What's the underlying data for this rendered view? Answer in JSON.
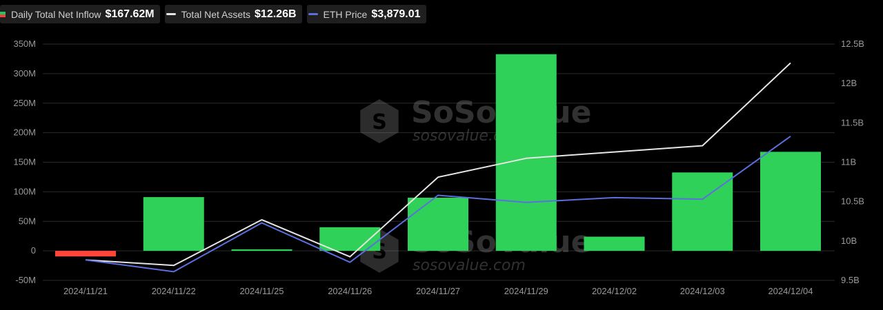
{
  "legend": {
    "inflow": {
      "label": "Daily Total Net Inflow",
      "value": "$167.62M"
    },
    "assets": {
      "label": "Total Net Assets",
      "value": "$12.26B"
    },
    "eth": {
      "label": "ETH Price",
      "value": "$3,879.01"
    }
  },
  "watermark": {
    "brand": "SoSoValue",
    "url": "sosovalue.com"
  },
  "colors": {
    "positive": "#30d158",
    "negative": "#ff453a",
    "assets_line": "#e6e6e6",
    "eth_line": "#5b6fe0",
    "grid": "#2a2a2a"
  },
  "chart_data": {
    "type": "bar",
    "categories": [
      "2024/11/21",
      "2024/11/22",
      "2024/11/25",
      "2024/11/26",
      "2024/11/27",
      "2024/11/29",
      "2024/12/02",
      "2024/12/03",
      "2024/12/04"
    ],
    "series": [
      {
        "name": "Daily Total Net Inflow",
        "type": "bar",
        "axis": "left",
        "values": [
          -9.5,
          91,
          2.5,
          40,
          90,
          332.9,
          24,
          132.7,
          167.62
        ]
      },
      {
        "name": "Total Net Assets",
        "type": "line",
        "axis": "right",
        "values": [
          9.76,
          9.69,
          10.27,
          9.8,
          10.81,
          11.05,
          11.13,
          11.21,
          12.26
        ]
      },
      {
        "name": "ETH Price",
        "type": "line",
        "axis": "right",
        "values": [
          9.76,
          9.61,
          10.23,
          9.73,
          10.58,
          10.49,
          10.55,
          10.53,
          11.33
        ]
      }
    ],
    "yleft": {
      "ticks": [
        "350M",
        "300M",
        "250M",
        "200M",
        "150M",
        "100M",
        "50M",
        "0",
        "-50M"
      ],
      "range": [
        -50,
        350
      ]
    },
    "yright": {
      "ticks": [
        "12.5B",
        "12B",
        "11.5B",
        "11B",
        "10.5B",
        "10B",
        "9.5B"
      ],
      "range": [
        9.5,
        12.5
      ]
    },
    "grid": true,
    "legend_position": "top-left"
  }
}
